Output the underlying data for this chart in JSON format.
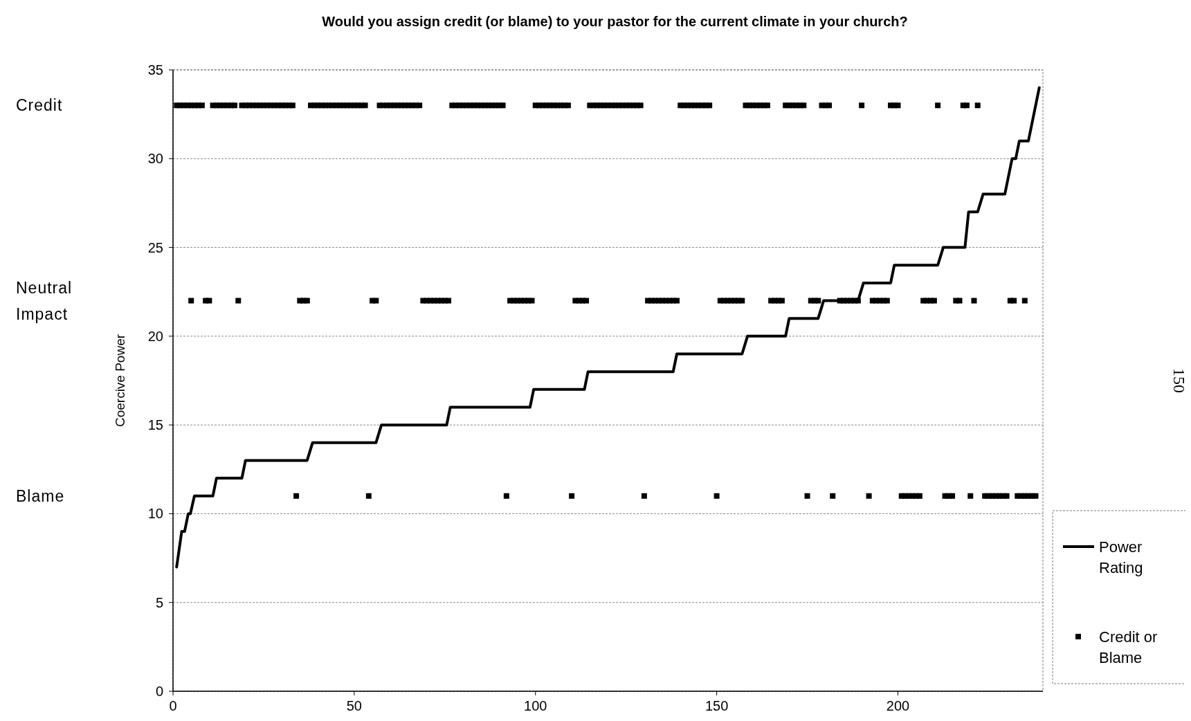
{
  "chart_data": {
    "type": "line",
    "title": "Would you assign credit (or blame) to your pastor for the current climate in your church?",
    "ylabel": "Coercive Power",
    "xlim": [
      0,
      240
    ],
    "xticks": [
      0,
      50,
      100,
      150,
      200
    ],
    "ylim": [
      0,
      35
    ],
    "yticks": [
      0,
      5,
      10,
      15,
      20,
      25,
      30,
      35
    ],
    "grid": "y",
    "legend": "right",
    "annotations": [
      "Credit",
      "Neutral Impact",
      "Blame",
      "150"
    ],
    "series": [
      {
        "name": "Power Rating",
        "color": "#000000",
        "marker": "none",
        "line_style": "solid",
        "x": [
          1,
          2.4,
          3.2,
          4.2,
          4.8,
          5.9,
          11,
          12,
          19,
          20,
          37,
          38.5,
          56,
          57.5,
          75.5,
          76.5,
          98.5,
          99.5,
          113.5,
          114.5,
          138,
          139,
          157,
          158.5,
          169,
          170,
          178,
          179.5,
          189,
          190.5,
          198,
          199,
          211,
          212.5,
          218.5,
          219.5,
          222,
          223.5,
          229.5,
          231.5,
          232.5,
          233.5,
          236,
          239
        ],
        "values": [
          7,
          9,
          9,
          10,
          10,
          11,
          11,
          12,
          12,
          13,
          13,
          14,
          14,
          15,
          15,
          16,
          16,
          17,
          17,
          18,
          18,
          19,
          19,
          20,
          20,
          21,
          21,
          22,
          22,
          23,
          23,
          24,
          24,
          25,
          25,
          27,
          27,
          28,
          28,
          30,
          30,
          31,
          31,
          34
        ]
      },
      {
        "name": "Credit or Blame",
        "type": "scatter",
        "color": "#000000",
        "marker": "square",
        "x": [
          1,
          2,
          3,
          4,
          5,
          6,
          7,
          8,
          11,
          12,
          13,
          14,
          15,
          16,
          17,
          19,
          20,
          21,
          22,
          23,
          24,
          25,
          26,
          27,
          28,
          29,
          30,
          31,
          32,
          33,
          38,
          39,
          40,
          41,
          42,
          43,
          44,
          45,
          46,
          47,
          48,
          49,
          50,
          51,
          52,
          53,
          57,
          58,
          59,
          60,
          61,
          62,
          63,
          64,
          65,
          66,
          67,
          68,
          77,
          78,
          79,
          80,
          81,
          82,
          83,
          84,
          85,
          86,
          87,
          88,
          89,
          90,
          91,
          100,
          101,
          102,
          103,
          104,
          105,
          106,
          107,
          108,
          109,
          115,
          116,
          117,
          118,
          119,
          120,
          121,
          122,
          123,
          124,
          125,
          126,
          127,
          128,
          129,
          140,
          141,
          142,
          143,
          144,
          145,
          146,
          147,
          148,
          158,
          159,
          160,
          161,
          162,
          163,
          164,
          169,
          170,
          171,
          172,
          173,
          174,
          179,
          180,
          181,
          190,
          198,
          199,
          200,
          211,
          218,
          219,
          222
        ],
        "values": [
          33,
          33,
          33,
          33,
          33,
          33,
          33,
          33,
          33,
          33,
          33,
          33,
          33,
          33,
          33,
          33,
          33,
          33,
          33,
          33,
          33,
          33,
          33,
          33,
          33,
          33,
          33,
          33,
          33,
          33,
          33,
          33,
          33,
          33,
          33,
          33,
          33,
          33,
          33,
          33,
          33,
          33,
          33,
          33,
          33,
          33,
          33,
          33,
          33,
          33,
          33,
          33,
          33,
          33,
          33,
          33,
          33,
          33,
          33,
          33,
          33,
          33,
          33,
          33,
          33,
          33,
          33,
          33,
          33,
          33,
          33,
          33,
          33,
          33,
          33,
          33,
          33,
          33,
          33,
          33,
          33,
          33,
          33,
          33,
          33,
          33,
          33,
          33,
          33,
          33,
          33,
          33,
          33,
          33,
          33,
          33,
          33,
          33,
          33,
          33,
          33,
          33,
          33,
          33,
          33,
          33,
          33,
          33,
          33,
          33,
          33,
          33,
          33,
          33,
          33,
          33,
          33,
          33,
          33,
          33,
          33,
          33,
          33,
          33,
          33,
          33,
          33,
          33,
          33,
          33,
          33
        ]
      },
      {
        "type": "scatter",
        "color": "#000000",
        "marker": "square",
        "x": [
          5,
          9,
          10,
          18,
          35,
          36,
          37,
          55,
          56,
          69,
          70,
          71,
          72,
          73,
          74,
          75,
          76,
          93,
          94,
          95,
          96,
          97,
          98,
          99,
          111,
          112,
          113,
          114,
          131,
          132,
          133,
          134,
          135,
          136,
          137,
          138,
          139,
          151,
          152,
          153,
          154,
          155,
          156,
          157,
          165,
          166,
          167,
          168,
          176,
          177,
          178,
          184,
          185,
          186,
          187,
          188,
          189,
          193,
          194,
          195,
          196,
          197,
          207,
          208,
          209,
          210,
          216,
          217,
          221,
          231,
          232,
          235
        ],
        "values": [
          22,
          22,
          22,
          22,
          22,
          22,
          22,
          22,
          22,
          22,
          22,
          22,
          22,
          22,
          22,
          22,
          22,
          22,
          22,
          22,
          22,
          22,
          22,
          22,
          22,
          22,
          22,
          22,
          22,
          22,
          22,
          22,
          22,
          22,
          22,
          22,
          22,
          22,
          22,
          22,
          22,
          22,
          22,
          22,
          22,
          22,
          22,
          22,
          22,
          22,
          22,
          22,
          22,
          22,
          22,
          22,
          22,
          22,
          22,
          22,
          22,
          22,
          22,
          22,
          22,
          22,
          22,
          22,
          22,
          22,
          22,
          22
        ]
      },
      {
        "type": "scatter",
        "color": "#000000",
        "marker": "square",
        "x": [
          34,
          54,
          92,
          110,
          130,
          150,
          175,
          182,
          192,
          201,
          202,
          203,
          204,
          205,
          206,
          213,
          214,
          215,
          220,
          224,
          225,
          226,
          227,
          228,
          229,
          230,
          233,
          234,
          235,
          236,
          237,
          238
        ],
        "values": [
          11,
          11,
          11,
          11,
          11,
          11,
          11,
          11,
          11,
          11,
          11,
          11,
          11,
          11,
          11,
          11,
          11,
          11,
          11,
          11,
          11,
          11,
          11,
          11,
          11,
          11,
          11,
          11,
          11,
          11,
          11,
          11
        ]
      }
    ]
  }
}
